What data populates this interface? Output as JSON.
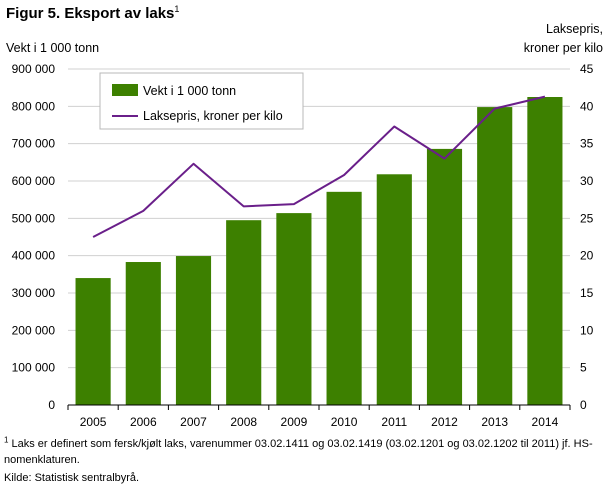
{
  "title": "Figur 5. Eksport av laks",
  "title_note_marker": "1",
  "footnote_marker": "1",
  "footnote": "Laks er definert som fersk/kjølt laks, varenummer 03.02.1411 og 03.02.1419 (03.02.1201 og 03.02.1202 til 2011) jf. HS-nomenklaturen.",
  "source": "Kilde: Statistisk sentralbyrå.",
  "colors": {
    "bars": "#3d8000",
    "line": "#6a1f8a",
    "grid": "#d0d0d0"
  },
  "chart_data": {
    "type": "bar+line",
    "categories": [
      "2005",
      "2006",
      "2007",
      "2008",
      "2009",
      "2010",
      "2011",
      "2012",
      "2013",
      "2014"
    ],
    "series": [
      {
        "name": "Vekt i 1 000 tonn",
        "type": "bar",
        "axis": "left",
        "values": [
          340000,
          383000,
          399000,
          495000,
          514000,
          571000,
          618000,
          686000,
          798000,
          825000
        ]
      },
      {
        "name": "Laksepris, kroner per kilo",
        "type": "line",
        "axis": "right",
        "values": [
          22.5,
          26.0,
          32.3,
          26.6,
          26.9,
          30.8,
          37.3,
          33.0,
          39.7,
          41.3
        ]
      }
    ],
    "y_left": {
      "label": "Vekt i 1 000 tonn",
      "min": 0,
      "max": 900000,
      "step": 100000,
      "tick_labels": [
        "0",
        "100 000",
        "200 000",
        "300 000",
        "400 000",
        "500 000",
        "600 000",
        "700 000",
        "800 000",
        "900 000"
      ]
    },
    "y_right": {
      "label_line1": "Laksepris,",
      "label_line2": "kroner per kilo",
      "min": 0,
      "max": 45,
      "step": 5,
      "tick_labels": [
        "0",
        "5",
        "10",
        "15",
        "20",
        "25",
        "30",
        "35",
        "40",
        "45"
      ]
    },
    "grid": true,
    "legend_position": "top-left"
  }
}
